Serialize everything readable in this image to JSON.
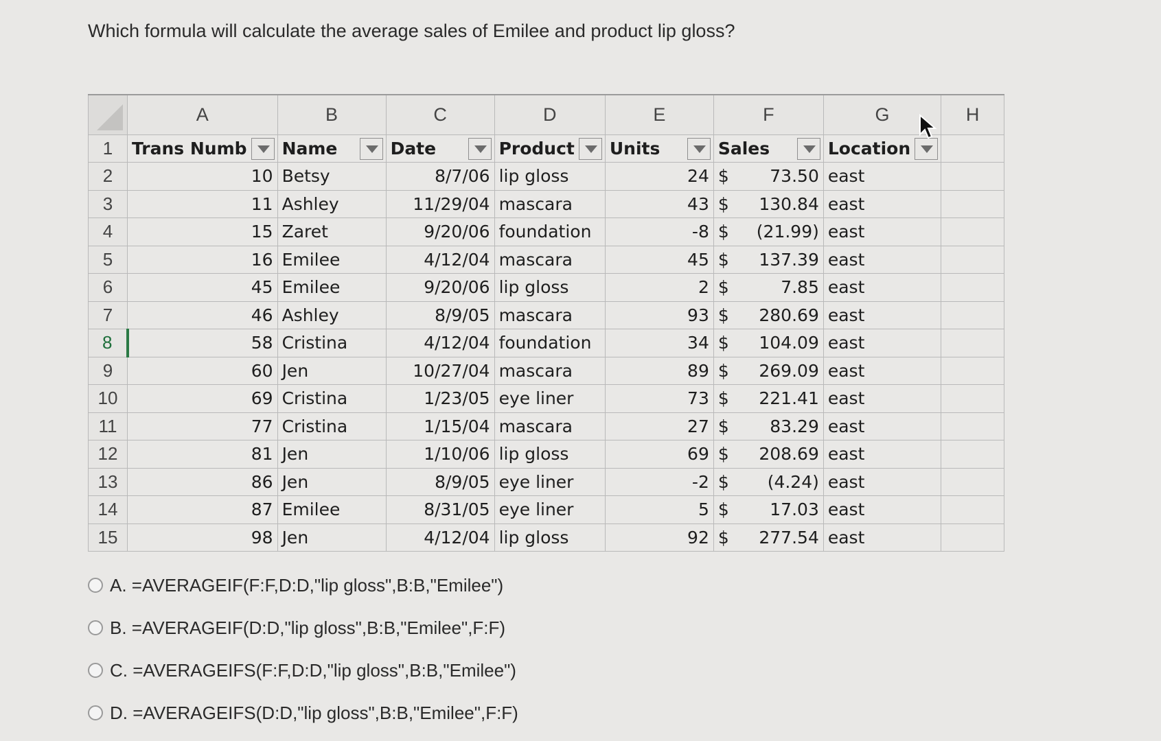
{
  "question": "Which formula will calculate the average sales of Emilee and product lip gloss?",
  "spreadsheet": {
    "column_letters": [
      "A",
      "B",
      "C",
      "D",
      "E",
      "F",
      "G",
      "H"
    ],
    "headers": [
      "Trans Numb",
      "Name",
      "Date",
      "Product",
      "Units",
      "Sales",
      "Location"
    ],
    "rows": [
      {
        "row": "2",
        "trans": "10",
        "name": "Betsy",
        "date": "8/7/06",
        "product": "lip gloss",
        "units": "24",
        "sales": "73.50",
        "location": "east"
      },
      {
        "row": "3",
        "trans": "11",
        "name": "Ashley",
        "date": "11/29/04",
        "product": "mascara",
        "units": "43",
        "sales": "130.84",
        "location": "east"
      },
      {
        "row": "4",
        "trans": "15",
        "name": "Zaret",
        "date": "9/20/06",
        "product": "foundation",
        "units": "-8",
        "sales": "(21.99)",
        "location": "east"
      },
      {
        "row": "5",
        "trans": "16",
        "name": "Emilee",
        "date": "4/12/04",
        "product": "mascara",
        "units": "45",
        "sales": "137.39",
        "location": "east"
      },
      {
        "row": "6",
        "trans": "45",
        "name": "Emilee",
        "date": "9/20/06",
        "product": "lip gloss",
        "units": "2",
        "sales": "7.85",
        "location": "east"
      },
      {
        "row": "7",
        "trans": "46",
        "name": "Ashley",
        "date": "8/9/05",
        "product": "mascara",
        "units": "93",
        "sales": "280.69",
        "location": "east"
      },
      {
        "row": "8",
        "trans": "58",
        "name": "Cristina",
        "date": "4/12/04",
        "product": "foundation",
        "units": "34",
        "sales": "104.09",
        "location": "east"
      },
      {
        "row": "9",
        "trans": "60",
        "name": "Jen",
        "date": "10/27/04",
        "product": "mascara",
        "units": "89",
        "sales": "269.09",
        "location": "east"
      },
      {
        "row": "10",
        "trans": "69",
        "name": "Cristina",
        "date": "1/23/05",
        "product": "eye liner",
        "units": "73",
        "sales": "221.41",
        "location": "east"
      },
      {
        "row": "11",
        "trans": "77",
        "name": "Cristina",
        "date": "1/15/04",
        "product": "mascara",
        "units": "27",
        "sales": "83.29",
        "location": "east"
      },
      {
        "row": "12",
        "trans": "81",
        "name": "Jen",
        "date": "1/10/06",
        "product": "lip gloss",
        "units": "69",
        "sales": "208.69",
        "location": "east"
      },
      {
        "row": "13",
        "trans": "86",
        "name": "Jen",
        "date": "8/9/05",
        "product": "eye liner",
        "units": "-2",
        "sales": "(4.24)",
        "location": "east"
      },
      {
        "row": "14",
        "trans": "87",
        "name": "Emilee",
        "date": "8/31/05",
        "product": "eye liner",
        "units": "5",
        "sales": "17.03",
        "location": "east"
      },
      {
        "row": "15",
        "trans": "98",
        "name": "Jen",
        "date": "4/12/04",
        "product": "lip gloss",
        "units": "92",
        "sales": "277.54",
        "location": "east"
      }
    ],
    "currency_symbol": "$",
    "selected_row": "8"
  },
  "choices": [
    "A. =AVERAGEIF(F:F,D:D,\"lip gloss\",B:B,\"Emilee\")",
    "B. =AVERAGEIF(D:D,\"lip gloss\",B:B,\"Emilee\",F:F)",
    "C. =AVERAGEIFS(F:F,D:D,\"lip gloss\",B:B,\"Emilee\")",
    "D. =AVERAGEIFS(D:D,\"lip gloss\",B:B,\"Emilee\",F:F)"
  ]
}
